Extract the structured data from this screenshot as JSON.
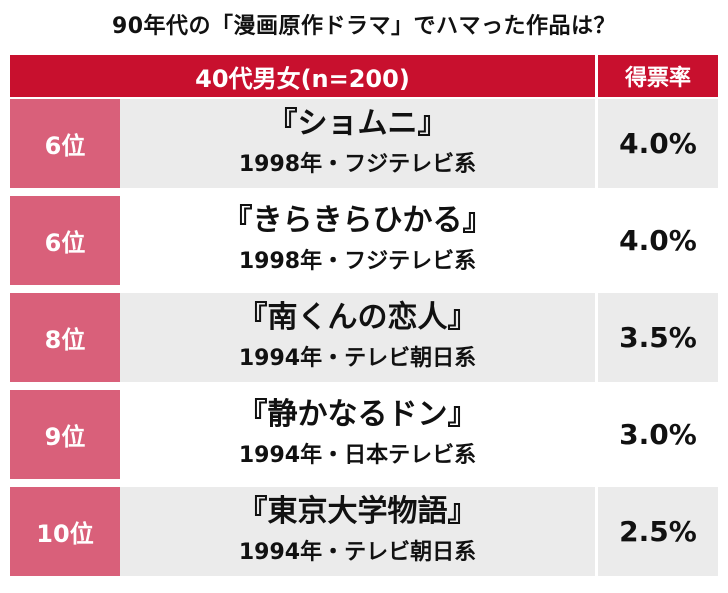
{
  "title": "90年代の「漫画原作ドラマ」でハマった作品は？",
  "header": {
    "group": "40代男女(n=200)",
    "rate_label": "得票率"
  },
  "rows": [
    {
      "rank": "6位",
      "work": "『ショムニ』",
      "meta": "1998年・フジテレビ系",
      "rate": "4.0%"
    },
    {
      "rank": "6位",
      "work": "『きらきらひかる』",
      "meta": "1998年・フジテレビ系",
      "rate": "4.0%"
    },
    {
      "rank": "8位",
      "work": "『南くんの恋人』",
      "meta": "1994年・テレビ朝日系",
      "rate": "3.5%"
    },
    {
      "rank": "9位",
      "work": "『静かなるドン』",
      "meta": "1994年・日本テレビ系",
      "rate": "3.0%"
    },
    {
      "rank": "10位",
      "work": "『東京大学物語』",
      "meta": "1994年・テレビ朝日系",
      "rate": "2.5%"
    }
  ],
  "colors": {
    "header_red": "#c8102e",
    "rank_pink": "#d9607a",
    "row_gray": "#ebebeb"
  },
  "chart_data": {
    "type": "table",
    "title": "90年代の「漫画原作ドラマ」でハマった作品は？",
    "columns": [
      "40代男女(n=200)",
      "得票率"
    ],
    "rows": [
      {
        "rank": "6位",
        "work": "『ショムニ』",
        "meta": "1998年・フジテレビ系",
        "value": 4.0
      },
      {
        "rank": "6位",
        "work": "『きらきらひかる』",
        "meta": "1998年・フジテレビ系",
        "value": 4.0
      },
      {
        "rank": "8位",
        "work": "『南くんの恋人』",
        "meta": "1994年・テレビ朝日系",
        "value": 3.5
      },
      {
        "rank": "9位",
        "work": "『静かなるドン』",
        "meta": "1994年・日本テレビ系",
        "value": 3.0
      },
      {
        "rank": "10位",
        "work": "『東京大学物語』",
        "meta": "1994年・テレビ朝日系",
        "value": 2.5
      }
    ]
  }
}
